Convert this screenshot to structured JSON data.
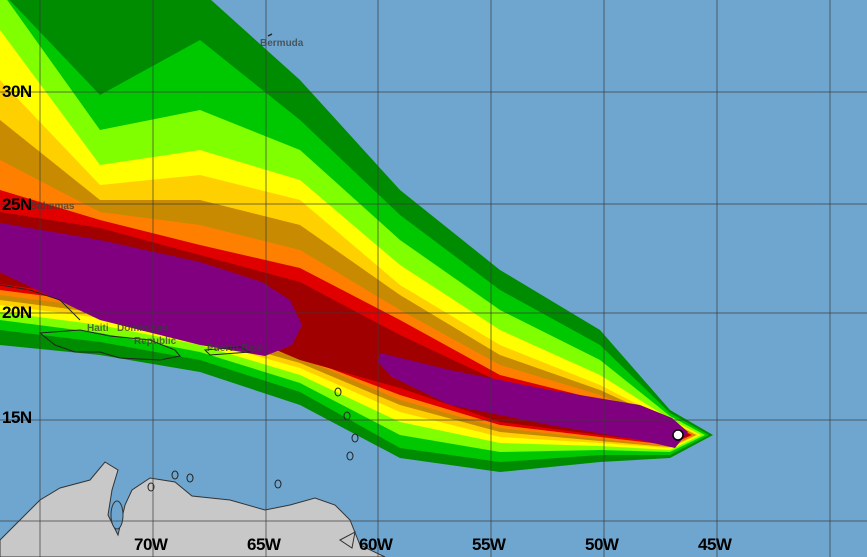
{
  "map": {
    "colors": {
      "ocean": "#6fa6cf",
      "land": "#c8c8c8",
      "bands": [
        "#008c00",
        "#00c800",
        "#80ff00",
        "#ffff00",
        "#ffd000",
        "#c88a00",
        "#ff8000",
        "#e00000",
        "#a00000",
        "#800080"
      ]
    },
    "lat_labels": [
      "30N",
      "25N",
      "20N",
      "15N"
    ],
    "lon_labels": [
      "70W",
      "65W",
      "60W",
      "55W",
      "50W",
      "45W"
    ],
    "places": {
      "bermuda": "Bermuda",
      "bahamas": "Bahamas",
      "haiti": "Haiti",
      "dominican": "Dominican",
      "republic": "Republic",
      "puerto_rico": "Puerto Rico"
    },
    "storm_marker": "current-position-dot"
  }
}
